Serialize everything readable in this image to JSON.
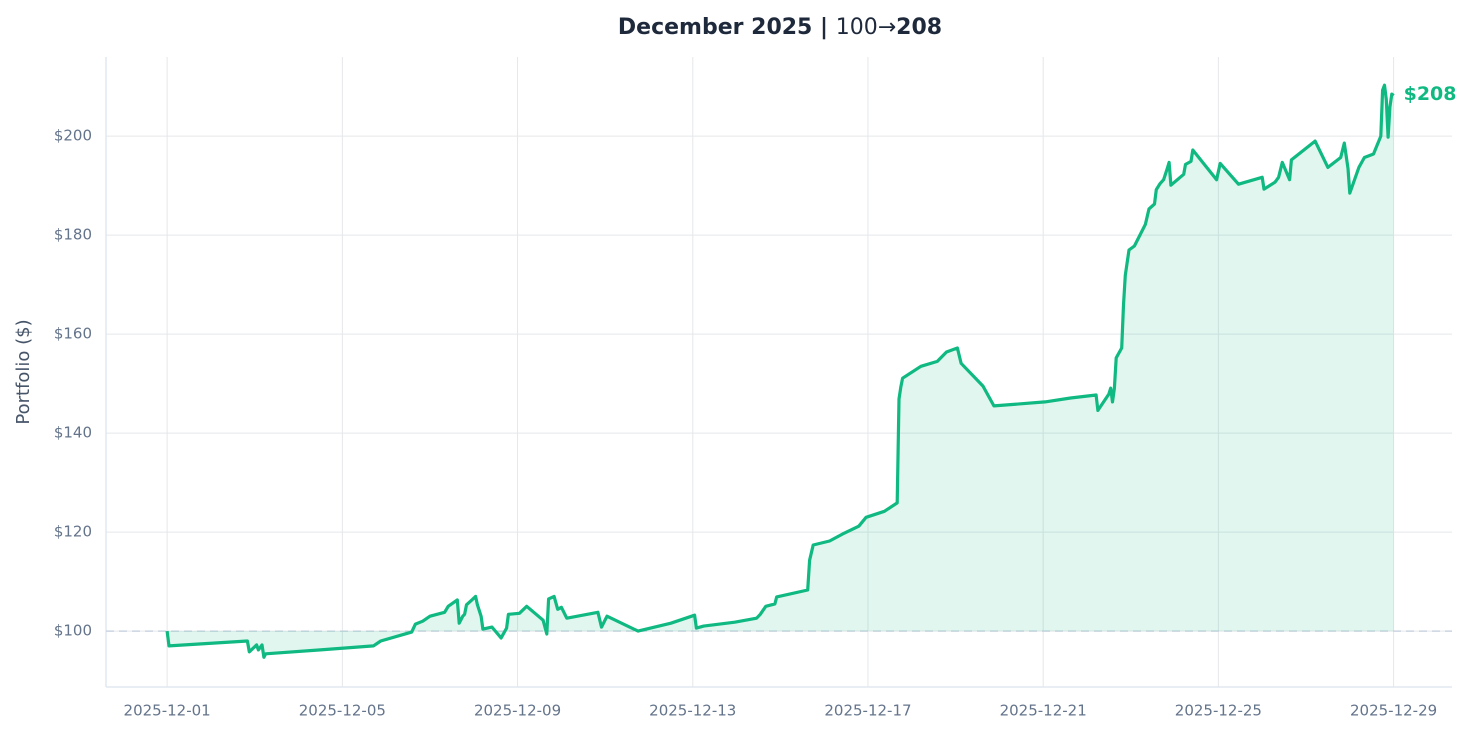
{
  "chart_data": {
    "type": "line",
    "title": [
      "December 2025 | ",
      "100→",
      "208"
    ],
    "ylabel": "Portfolio ($)",
    "annotation": "$208",
    "baseline": 100,
    "grid": true,
    "xlim": [
      "2025-11-29T14:30",
      "2025-12-30T08:00"
    ],
    "xticks": [
      "2025-12-01",
      "2025-12-05",
      "2025-12-09",
      "2025-12-13",
      "2025-12-17",
      "2025-12-21",
      "2025-12-25",
      "2025-12-29"
    ],
    "ylim": [
      88.7,
      216
    ],
    "yticks": [
      {
        "value": 100,
        "label": "$100"
      },
      {
        "value": 120,
        "label": "$120"
      },
      {
        "value": 140,
        "label": "$140"
      },
      {
        "value": 160,
        "label": "$160"
      },
      {
        "value": 180,
        "label": "$180"
      },
      {
        "value": 200,
        "label": "$200"
      }
    ],
    "x": [
      "2025-12-01T00:00",
      "2025-12-01T01:00",
      "2025-12-02T20:00",
      "2025-12-02T21:00",
      "2025-12-03T01:00",
      "2025-12-03T02:00",
      "2025-12-03T04:00",
      "2025-12-03T05:00",
      "2025-12-03T06:00",
      "2025-12-04T12:00",
      "2025-12-05T17:00",
      "2025-12-05T21:00",
      "2025-12-06T14:00",
      "2025-12-06T16:00",
      "2025-12-06T20:00",
      "2025-12-07T00:00",
      "2025-12-07T08:00",
      "2025-12-07T10:00",
      "2025-12-07T15:00",
      "2025-12-07T16:00",
      "2025-12-07T18:00",
      "2025-12-07T19:00",
      "2025-12-07T20:00",
      "2025-12-07T23:00",
      "2025-12-08T01:00",
      "2025-12-08T02:00",
      "2025-12-08T04:00",
      "2025-12-08T05:00",
      "2025-12-08T10:00",
      "2025-12-08T15:00",
      "2025-12-08T18:00",
      "2025-12-08T19:00",
      "2025-12-09T01:00",
      "2025-12-09T05:00",
      "2025-12-09T14:00",
      "2025-12-09T16:00",
      "2025-12-09T17:00",
      "2025-12-09T20:00",
      "2025-12-09T22:00",
      "2025-12-10T00:00",
      "2025-12-10T03:00",
      "2025-12-10T20:00",
      "2025-12-10T22:00",
      "2025-12-11T01:00",
      "2025-12-11T18:00",
      "2025-12-12T12:00",
      "2025-12-13T01:00",
      "2025-12-13T02:00",
      "2025-12-13T06:00",
      "2025-12-13T23:00",
      "2025-12-14T11:00",
      "2025-12-14T13:00",
      "2025-12-14T16:00",
      "2025-12-14T21:00",
      "2025-12-14T22:00",
      "2025-12-15T15:00",
      "2025-12-15T16:00",
      "2025-12-15T18:00",
      "2025-12-16T03:00",
      "2025-12-16T10:00",
      "2025-12-16T19:00",
      "2025-12-16T23:00",
      "2025-12-17T09:00",
      "2025-12-17T16:00",
      "2025-12-17T17:00",
      "2025-12-17T18:00",
      "2025-12-17T19:00",
      "2025-12-18T05:00",
      "2025-12-18T14:00",
      "2025-12-18T19:00",
      "2025-12-19T01:00",
      "2025-12-19T03:00",
      "2025-12-19T15:00",
      "2025-12-19T21:00",
      "2025-12-21T01:00",
      "2025-12-21T15:00",
      "2025-12-22T05:00",
      "2025-12-22T06:00",
      "2025-12-22T12:00",
      "2025-12-22T13:00",
      "2025-12-22T14:00",
      "2025-12-22T15:00",
      "2025-12-22T16:00",
      "2025-12-22T19:00",
      "2025-12-22T20:00",
      "2025-12-22T21:00",
      "2025-12-22T23:00",
      "2025-12-23T02:00",
      "2025-12-23T08:00",
      "2025-12-23T10:00",
      "2025-12-23T13:00",
      "2025-12-23T14:00",
      "2025-12-23T16:00",
      "2025-12-23T18:00",
      "2025-12-23T20:00",
      "2025-12-23T21:00",
      "2025-12-23T22:00",
      "2025-12-24T05:00",
      "2025-12-24T06:00",
      "2025-12-24T09:00",
      "2025-12-24T10:00",
      "2025-12-24T23:00",
      "2025-12-25T01:00",
      "2025-12-25T11:00",
      "2025-12-26T00:00",
      "2025-12-26T01:00",
      "2025-12-26T07:00",
      "2025-12-26T09:00",
      "2025-12-26T11:00",
      "2025-12-26T15:00",
      "2025-12-26T16:00",
      "2025-12-27T05:00",
      "2025-12-27T12:00",
      "2025-12-27T19:00",
      "2025-12-27T21:00",
      "2025-12-27T23:00",
      "2025-12-28T00:00",
      "2025-12-28T05:00",
      "2025-12-28T08:00",
      "2025-12-28T13:00",
      "2025-12-28T17:00",
      "2025-12-28T18:00",
      "2025-12-28T19:00",
      "2025-12-28T20:00",
      "2025-12-28T21:00",
      "2025-12-28T22:00",
      "2025-12-28T23:00",
      "2025-12-29T00:00"
    ],
    "series": [
      {
        "name": "Portfolio",
        "color": "#10b981",
        "values": [
          100,
          97,
          98,
          95.8,
          97.2,
          96.2,
          97.2,
          94.7,
          95.4,
          96.2,
          97,
          98,
          99.8,
          101.4,
          102,
          103,
          103.8,
          105,
          106.3,
          101.6,
          103,
          103.4,
          105.3,
          106.3,
          107,
          105.3,
          103,
          100.4,
          100.8,
          98.6,
          100.6,
          103.4,
          103.6,
          105,
          102.2,
          99.4,
          106.5,
          107,
          104.4,
          104.8,
          102.6,
          103.8,
          100.8,
          103,
          100,
          101.6,
          103.2,
          100.6,
          101,
          101.8,
          102.6,
          103.4,
          105,
          105.5,
          106.9,
          108.3,
          114.3,
          117.4,
          118.2,
          119.6,
          121.2,
          123,
          124.2,
          125.9,
          146.9,
          149.3,
          151.1,
          153.5,
          154.5,
          156.4,
          157.2,
          154.1,
          149.5,
          145.5,
          146.3,
          147.1,
          147.7,
          144.6,
          147.9,
          149.1,
          146.3,
          149.1,
          155.2,
          157.2,
          165.9,
          171.9,
          177,
          177.8,
          182.2,
          185.3,
          186.3,
          189.2,
          190.4,
          191.2,
          193.5,
          194.7,
          190.1,
          192.3,
          194.3,
          194.9,
          197.2,
          191.2,
          194.5,
          190.3,
          191.7,
          189.3,
          190.7,
          191.7,
          194.7,
          191.2,
          195.2,
          199,
          193.7,
          195.7,
          198.6,
          193.5,
          188.5,
          193.7,
          195.7,
          196.4,
          200,
          209.3,
          210.3,
          207.4,
          199.8,
          205.9,
          208.5,
          208.2
        ]
      }
    ]
  }
}
